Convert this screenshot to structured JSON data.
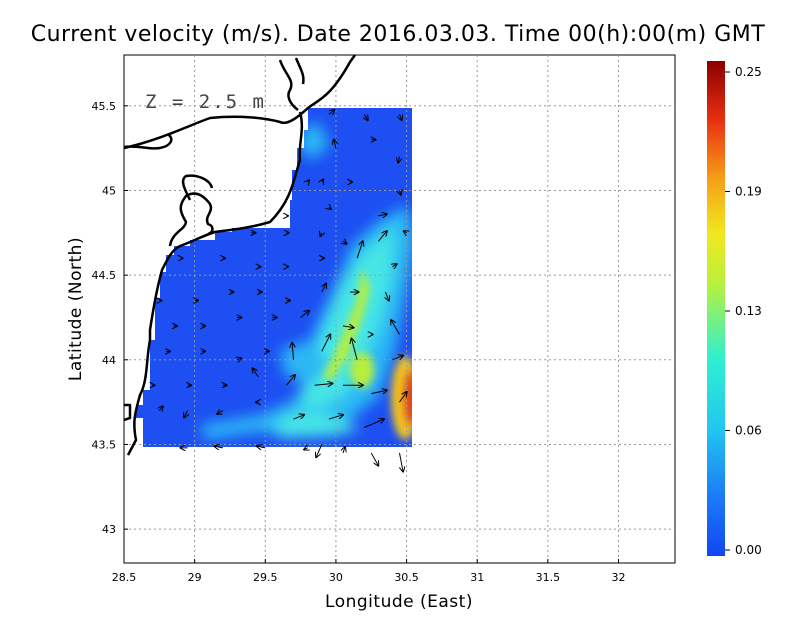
{
  "chart_data": {
    "type": "map",
    "title": "Current velocity (m/s). Date 2016.03.03. Time 00(h):00(m) GMT",
    "xlabel": "Longitude (East)",
    "ylabel": "Latitude (North)",
    "annotation": "Z = 2.5 m",
    "xlim": [
      28.5,
      32.4
    ],
    "ylim": [
      42.8,
      45.8
    ],
    "x_ticks": [
      "28.5",
      "29",
      "29.5",
      "30",
      "30.5",
      "31",
      "31.5",
      "32"
    ],
    "y_ticks": [
      "43",
      "43.5",
      "44",
      "44.5",
      "45",
      "45.5"
    ],
    "grid": true,
    "colorbar": {
      "ticks": [
        "0.25",
        "0.19",
        "0.13",
        "0.06",
        "0.00"
      ],
      "range": [
        0.0,
        0.25
      ],
      "colors": [
        "#1046f2",
        "#1b7cf6",
        "#22c8f0",
        "#30f0d0",
        "#b8f03a",
        "#f0e820",
        "#f7a018",
        "#e83010",
        "#8a0000"
      ]
    },
    "field_colors": {
      "calm": "#1d4ff2",
      "jet_outer": "#2bb7f4",
      "jet_mid": "#45e6e6",
      "jet_core": "#b6ef3c",
      "strong": "#f2c21e",
      "max": "#e23612"
    },
    "land_outline_color": "#000000",
    "arrows": [
      [
        29.95,
        45.45,
        0.08,
        0.05
      ],
      [
        30.2,
        45.45,
        0.05,
        -0.07
      ],
      [
        30.45,
        45.45,
        0.03,
        -0.07
      ],
      [
        30.0,
        45.25,
        -0.03,
        0.1
      ],
      [
        30.25,
        45.3,
        0.06,
        0.0
      ],
      [
        30.45,
        45.2,
        -0.02,
        -0.07
      ],
      [
        29.8,
        45.05,
        0.02,
        0.02
      ],
      [
        29.9,
        45.05,
        0.02,
        0.03
      ],
      [
        30.1,
        45.05,
        0.03,
        0.0
      ],
      [
        30.45,
        45.0,
        0.02,
        -0.05
      ],
      [
        29.65,
        44.85,
        0.02,
        0.0
      ],
      [
        29.95,
        44.9,
        0.03,
        -0.02
      ],
      [
        30.3,
        44.85,
        0.12,
        0.02
      ],
      [
        29.4,
        44.75,
        0.06,
        0.0
      ],
      [
        29.65,
        44.75,
        0.03,
        0.0
      ],
      [
        29.9,
        44.75,
        -0.02,
        -0.04
      ],
      [
        30.05,
        44.7,
        0.05,
        -0.03
      ],
      [
        30.3,
        44.7,
        0.12,
        0.12
      ],
      [
        30.5,
        44.75,
        -0.04,
        0.02
      ],
      [
        28.9,
        44.6,
        0.03,
        0.0
      ],
      [
        29.2,
        44.6,
        0.03,
        0.0
      ],
      [
        29.45,
        44.55,
        0.03,
        0.0
      ],
      [
        29.65,
        44.55,
        0.02,
        0.0
      ],
      [
        29.9,
        44.6,
        0.03,
        0.0
      ],
      [
        30.15,
        44.6,
        0.08,
        0.2
      ],
      [
        30.4,
        44.55,
        0.06,
        0.03
      ],
      [
        28.75,
        44.35,
        0.03,
        0.0
      ],
      [
        29.0,
        44.35,
        0.05,
        0.0
      ],
      [
        29.25,
        44.4,
        0.05,
        0.0
      ],
      [
        29.45,
        44.4,
        0.05,
        0.0
      ],
      [
        29.65,
        44.35,
        0.05,
        0.0
      ],
      [
        29.9,
        44.4,
        0.06,
        0.1
      ],
      [
        30.1,
        44.4,
        0.12,
        0.0
      ],
      [
        30.35,
        44.4,
        0.05,
        -0.1
      ],
      [
        28.85,
        44.2,
        0.05,
        0.0
      ],
      [
        29.05,
        44.2,
        0.05,
        0.0
      ],
      [
        29.3,
        44.25,
        0.06,
        0.0
      ],
      [
        29.55,
        44.25,
        0.06,
        0.0
      ],
      [
        29.75,
        44.25,
        0.12,
        0.08
      ],
      [
        30.05,
        44.2,
        0.15,
        -0.02
      ],
      [
        30.25,
        44.15,
        0.02,
        0.0
      ],
      [
        30.45,
        44.15,
        -0.12,
        0.17
      ],
      [
        28.8,
        44.05,
        0.05,
        0.0
      ],
      [
        29.05,
        44.05,
        0.05,
        0.0
      ],
      [
        29.3,
        44.0,
        0.06,
        0.02
      ],
      [
        29.5,
        44.05,
        0.05,
        0.0
      ],
      [
        29.7,
        44.0,
        -0.02,
        0.2
      ],
      [
        29.9,
        44.05,
        0.12,
        0.2
      ],
      [
        30.15,
        44.0,
        -0.08,
        0.25
      ],
      [
        30.4,
        44.0,
        0.15,
        0.05
      ],
      [
        28.7,
        43.85,
        0.03,
        0.0
      ],
      [
        28.95,
        43.85,
        0.05,
        0.0
      ],
      [
        29.2,
        43.85,
        0.05,
        0.0
      ],
      [
        29.45,
        43.9,
        -0.08,
        0.1
      ],
      [
        29.65,
        43.85,
        0.12,
        0.12
      ],
      [
        29.85,
        43.85,
        0.25,
        0.02
      ],
      [
        30.05,
        43.85,
        0.28,
        0.0
      ],
      [
        30.25,
        43.8,
        0.22,
        0.04
      ],
      [
        30.45,
        43.75,
        0.1,
        0.12
      ],
      [
        28.75,
        43.7,
        0.05,
        0.05
      ],
      [
        28.95,
        43.7,
        -0.05,
        -0.08
      ],
      [
        29.2,
        43.7,
        -0.08,
        -0.04
      ],
      [
        29.45,
        43.75,
        -0.03,
        0.0
      ],
      [
        29.7,
        43.65,
        0.15,
        0.05
      ],
      [
        29.95,
        43.65,
        0.2,
        0.05
      ],
      [
        30.2,
        43.6,
        0.28,
        0.1
      ],
      [
        28.95,
        43.48,
        -0.1,
        0.0
      ],
      [
        29.2,
        43.48,
        -0.12,
        0.02
      ],
      [
        29.5,
        43.48,
        -0.12,
        0.02
      ],
      [
        29.8,
        43.48,
        -0.05,
        -0.02
      ],
      [
        30.05,
        43.45,
        0.03,
        0.07
      ],
      [
        30.25,
        43.45,
        0.1,
        -0.15
      ],
      [
        30.45,
        43.45,
        0.05,
        -0.22
      ],
      [
        29.9,
        43.5,
        -0.08,
        -0.15
      ]
    ]
  }
}
